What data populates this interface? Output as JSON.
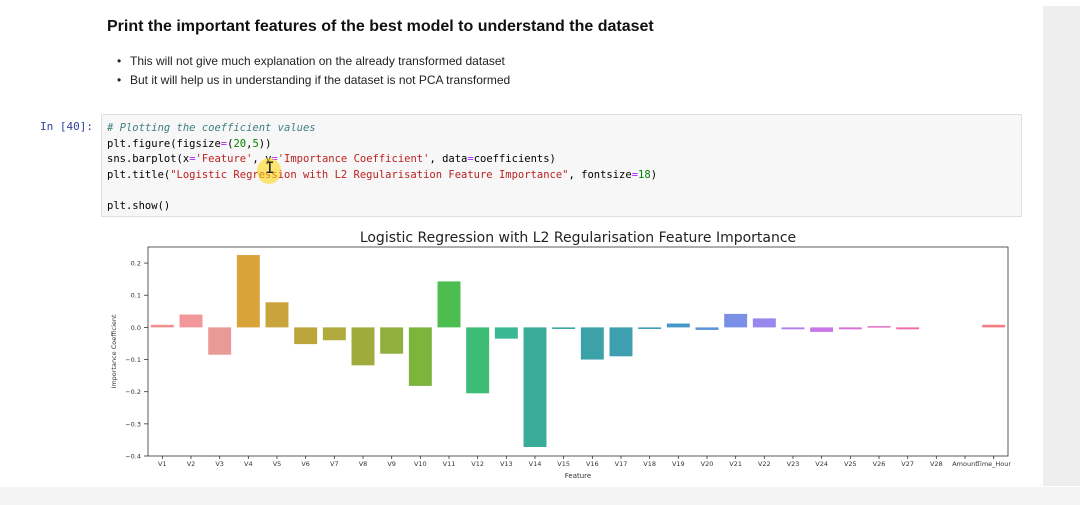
{
  "markdown": {
    "title": "Print the important features of the best model to understand the dataset",
    "bullets": [
      "This will not give much explanation on the already transformed dataset",
      "But it will help us in understanding if the dataset is not PCA transformed"
    ]
  },
  "cell": {
    "prompt": "In [40]:",
    "code": {
      "comment": "# Plotting the coefficient values",
      "l2a": "plt.figure(figsize",
      "l2op": "=",
      "l2p": "(",
      "l2n1": "20",
      "l2c": ",",
      "l2n2": "5",
      "l2e": "))",
      "l3a": "sns.barplot(x",
      "l3op1": "=",
      "l3s1": "'Feature'",
      "l3b": ", y",
      "l3op2": "=",
      "l3s2": "'Importance Coefficient'",
      "l3c": ", data",
      "l3op3": "=",
      "l3d": "coefficients)",
      "l4a": "plt.title(",
      "l4s": "\"Logistic Regression with L2 Regularisation Feature Importance\"",
      "l4b": ", fontsize",
      "l4op": "=",
      "l4n": "18",
      "l4e": ")",
      "l6": "plt.show()"
    }
  },
  "chart_data": {
    "type": "bar",
    "title": "Logistic Regression with L2 Regularisation Feature Importance",
    "xlabel": "Feature",
    "ylabel": "Importance Coefficient",
    "ylim": [
      -0.4,
      0.25
    ],
    "yticks": [
      0.2,
      0.1,
      0.0,
      -0.1,
      -0.2,
      -0.3,
      -0.4
    ],
    "ytick_labels": [
      "0.2",
      "0.1",
      "0.0",
      "−0.1",
      "−0.2",
      "−0.3",
      "−0.4"
    ],
    "categories": [
      "V1",
      "V2",
      "V3",
      "V4",
      "V5",
      "V6",
      "V7",
      "V8",
      "V9",
      "V10",
      "V11",
      "V12",
      "V13",
      "V14",
      "V15",
      "V16",
      "V17",
      "V18",
      "V19",
      "V20",
      "V21",
      "V22",
      "V23",
      "V24",
      "V25",
      "V26",
      "V27",
      "V28",
      "Amount",
      "Time_Hour"
    ],
    "tick_labels": [
      "V1",
      "V2",
      "V3",
      "V4",
      "V5",
      "V6",
      "V7",
      "V8",
      "V9",
      "V10",
      "V11",
      "V12",
      "V13",
      "V14",
      "V15",
      "V16",
      "V17",
      "V18",
      "V19",
      "V20",
      "V21",
      "V22",
      "V23",
      "V24",
      "V25",
      "V26",
      "V27",
      "V28",
      "Amount",
      "Time_Hour"
    ],
    "values": [
      0.008,
      0.04,
      -0.085,
      0.225,
      0.078,
      -0.052,
      -0.04,
      -0.118,
      -0.082,
      -0.182,
      0.143,
      -0.205,
      -0.035,
      -0.372,
      -0.005,
      -0.1,
      -0.09,
      -0.005,
      0.012,
      -0.008,
      0.042,
      0.028,
      -0.006,
      -0.014,
      -0.006,
      0.004,
      -0.006,
      0.0,
      0.0,
      0.008
    ],
    "colors": [
      "#f28e8e",
      "#f3989a",
      "#e89a96",
      "#d9a33a",
      "#c9a33c",
      "#bca63c",
      "#b0a93c",
      "#9fac3c",
      "#8fb03c",
      "#7db43c",
      "#4ebd4f",
      "#3dbc75",
      "#3ab893",
      "#3aab98",
      "#3ca59f",
      "#3ca2a8",
      "#3d9fb0",
      "#3f9cba",
      "#4499c8",
      "#5b95d8",
      "#7a8fe6",
      "#9887ec",
      "#b47eec",
      "#c977e6",
      "#d870d8",
      "#e56cc6",
      "#ef6aa8",
      "#f06a8a",
      "#f36f7a",
      "#f37d82"
    ],
    "grid": false
  }
}
